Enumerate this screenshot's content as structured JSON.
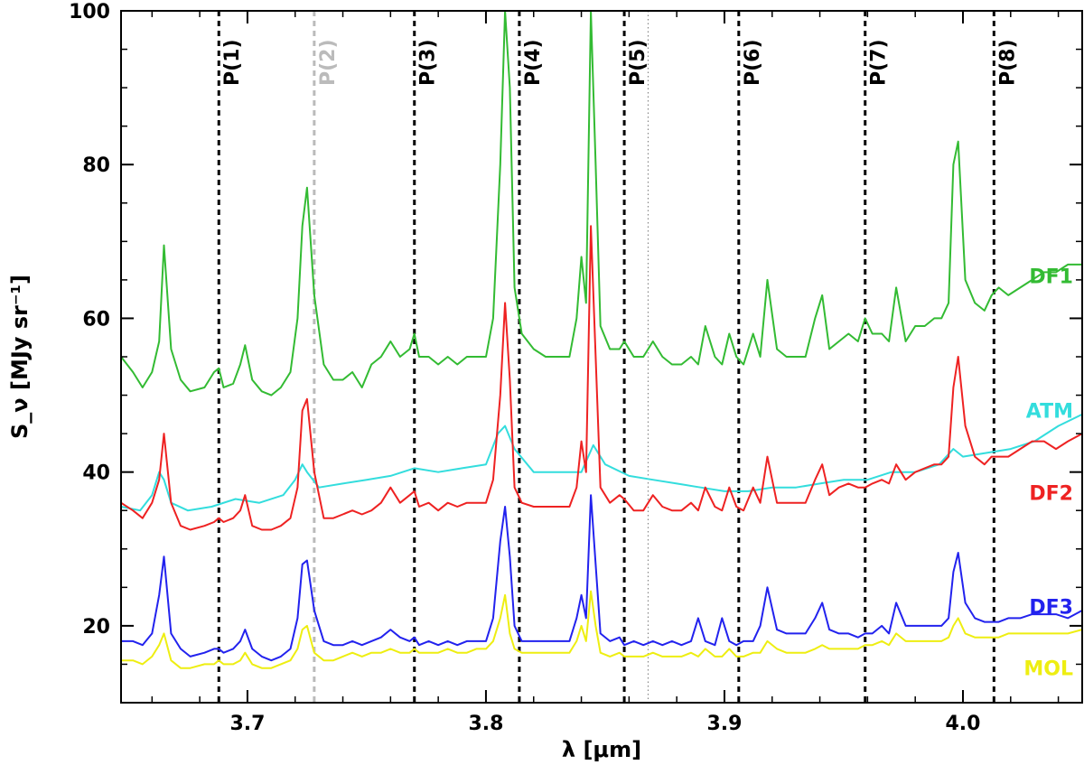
{
  "chart_data": {
    "type": "line",
    "xlabel": "λ [μm]",
    "ylabel": "S_ν [MJy sr⁻¹]",
    "xlim": [
      3.647,
      4.05
    ],
    "ylim": [
      10,
      100
    ],
    "x_ticks": [
      3.7,
      3.8,
      3.9,
      4.0
    ],
    "x_tick_labels": [
      "3.7",
      "3.8",
      "3.9",
      "4.0"
    ],
    "y_ticks": [
      20,
      40,
      60,
      80,
      100
    ],
    "y_tick_labels": [
      "20",
      "40",
      "60",
      "80",
      "100"
    ],
    "grid": false,
    "vlines": [
      {
        "label": "P(1)",
        "x": 3.688,
        "color": "#000000",
        "style": "dashed"
      },
      {
        "label": "P(2)",
        "x": 3.728,
        "color": "#bbbbbb",
        "style": "dashed"
      },
      {
        "label": "P(3)",
        "x": 3.77,
        "color": "#000000",
        "style": "dashed"
      },
      {
        "label": "P(4)",
        "x": 3.814,
        "color": "#000000",
        "style": "dashed"
      },
      {
        "label": "P(5)",
        "x": 3.858,
        "color": "#000000",
        "style": "dashed"
      },
      {
        "label": "",
        "x": 3.868,
        "color": "#888888",
        "style": "dotted"
      },
      {
        "label": "P(6)",
        "x": 3.906,
        "color": "#000000",
        "style": "dashed"
      },
      {
        "label": "P(7)",
        "x": 3.959,
        "color": "#000000",
        "style": "dashed"
      },
      {
        "label": "P(8)",
        "x": 4.013,
        "color": "#000000",
        "style": "dashed"
      }
    ],
    "series": [
      {
        "name": "DF1",
        "color": "#33bb33",
        "label_y": 65.5,
        "x": [
          3.647,
          3.652,
          3.656,
          3.66,
          3.663,
          3.665,
          3.668,
          3.672,
          3.676,
          3.682,
          3.686,
          3.688,
          3.69,
          3.694,
          3.697,
          3.699,
          3.702,
          3.706,
          3.71,
          3.714,
          3.718,
          3.721,
          3.723,
          3.725,
          3.728,
          3.732,
          3.736,
          3.74,
          3.744,
          3.748,
          3.752,
          3.756,
          3.76,
          3.764,
          3.768,
          3.77,
          3.772,
          3.776,
          3.78,
          3.784,
          3.788,
          3.792,
          3.796,
          3.8,
          3.803,
          3.806,
          3.808,
          3.81,
          3.812,
          3.815,
          3.82,
          3.825,
          3.83,
          3.835,
          3.838,
          3.84,
          3.842,
          3.844,
          3.846,
          3.848,
          3.852,
          3.856,
          3.858,
          3.862,
          3.866,
          3.87,
          3.874,
          3.878,
          3.882,
          3.886,
          3.889,
          3.892,
          3.896,
          3.899,
          3.902,
          3.905,
          3.908,
          3.912,
          3.915,
          3.918,
          3.922,
          3.926,
          3.93,
          3.934,
          3.938,
          3.941,
          3.944,
          3.948,
          3.952,
          3.956,
          3.959,
          3.962,
          3.966,
          3.969,
          3.972,
          3.976,
          3.98,
          3.984,
          3.988,
          3.991,
          3.994,
          3.996,
          3.998,
          4.001,
          4.005,
          4.009,
          4.012,
          4.015,
          4.019,
          4.024,
          4.029,
          4.034,
          4.039,
          4.044,
          4.05
        ],
        "y": [
          55,
          53,
          51,
          53,
          57,
          69.5,
          56,
          52,
          50.5,
          51,
          53,
          53.5,
          51,
          51.5,
          54,
          56.5,
          52,
          50.5,
          50,
          51,
          53,
          60,
          72,
          77,
          63,
          54,
          52,
          52,
          53,
          51,
          54,
          55,
          57,
          55,
          56,
          58,
          55,
          55,
          54,
          55,
          54,
          55,
          55,
          55,
          60,
          80,
          100,
          90,
          64,
          58,
          56,
          55,
          55,
          55,
          60,
          68,
          62,
          100,
          80,
          59,
          56,
          56,
          57,
          55,
          55,
          57,
          55,
          54,
          54,
          55,
          54,
          59,
          55,
          54,
          58,
          55,
          54,
          58,
          55,
          65,
          56,
          55,
          55,
          55,
          60,
          63,
          56,
          57,
          58,
          57,
          60,
          58,
          58,
          57,
          64,
          57,
          59,
          59,
          60,
          60,
          62,
          80,
          83,
          65,
          62,
          61,
          63,
          64,
          63,
          64,
          65,
          66,
          66,
          67,
          67
        ]
      },
      {
        "name": "ATM",
        "color": "#33dddd",
        "label_y": 48,
        "x": [
          3.647,
          3.655,
          3.66,
          3.663,
          3.665,
          3.668,
          3.675,
          3.685,
          3.695,
          3.705,
          3.715,
          3.72,
          3.723,
          3.725,
          3.73,
          3.74,
          3.75,
          3.76,
          3.77,
          3.78,
          3.79,
          3.8,
          3.805,
          3.808,
          3.812,
          3.82,
          3.83,
          3.84,
          3.845,
          3.85,
          3.86,
          3.87,
          3.88,
          3.89,
          3.9,
          3.91,
          3.92,
          3.93,
          3.94,
          3.95,
          3.96,
          3.97,
          3.98,
          3.99,
          3.996,
          4.0,
          4.01,
          4.02,
          4.03,
          4.04,
          4.05
        ],
        "y": [
          35.5,
          35,
          37,
          40,
          39,
          36,
          35,
          35.5,
          36.5,
          36,
          37,
          39,
          41,
          40,
          38,
          38.5,
          39,
          39.5,
          40.5,
          40,
          40.5,
          41,
          45,
          46,
          43,
          40,
          40,
          40,
          43.5,
          41,
          39.5,
          39,
          38.5,
          38,
          37.5,
          37.5,
          38,
          38,
          38.5,
          39,
          39,
          40,
          40,
          41,
          43,
          42,
          42.5,
          43,
          44,
          46,
          47.5
        ]
      },
      {
        "name": "DF2",
        "color": "#ee2222",
        "label_y": 37.3,
        "x": [
          3.647,
          3.652,
          3.656,
          3.66,
          3.663,
          3.665,
          3.668,
          3.672,
          3.676,
          3.682,
          3.686,
          3.688,
          3.69,
          3.694,
          3.697,
          3.699,
          3.702,
          3.706,
          3.71,
          3.714,
          3.718,
          3.721,
          3.723,
          3.725,
          3.728,
          3.732,
          3.736,
          3.74,
          3.744,
          3.748,
          3.752,
          3.756,
          3.76,
          3.764,
          3.768,
          3.77,
          3.772,
          3.776,
          3.78,
          3.784,
          3.788,
          3.792,
          3.796,
          3.8,
          3.803,
          3.806,
          3.808,
          3.81,
          3.812,
          3.815,
          3.82,
          3.825,
          3.83,
          3.835,
          3.838,
          3.84,
          3.842,
          3.844,
          3.846,
          3.848,
          3.852,
          3.856,
          3.858,
          3.862,
          3.866,
          3.87,
          3.874,
          3.878,
          3.882,
          3.886,
          3.889,
          3.892,
          3.896,
          3.899,
          3.902,
          3.905,
          3.908,
          3.912,
          3.915,
          3.918,
          3.922,
          3.926,
          3.93,
          3.934,
          3.938,
          3.941,
          3.944,
          3.948,
          3.952,
          3.956,
          3.959,
          3.962,
          3.966,
          3.969,
          3.972,
          3.976,
          3.98,
          3.984,
          3.988,
          3.991,
          3.994,
          3.996,
          3.998,
          4.001,
          4.005,
          4.009,
          4.012,
          4.015,
          4.019,
          4.024,
          4.029,
          4.034,
          4.039,
          4.044,
          4.05
        ],
        "y": [
          36,
          35,
          34,
          36,
          39,
          45,
          36,
          33,
          32.5,
          33,
          33.5,
          34,
          33.5,
          34,
          35,
          37,
          33,
          32.5,
          32.5,
          33,
          34,
          38,
          48,
          49.5,
          40,
          34,
          34,
          34.5,
          35,
          34.5,
          35,
          36,
          38,
          36,
          37,
          37.5,
          35.5,
          36,
          35,
          36,
          35.5,
          36,
          36,
          36,
          39,
          50,
          62,
          52,
          38,
          36,
          35.5,
          35.5,
          35.5,
          35.5,
          38,
          44,
          40,
          72,
          55,
          38,
          36,
          37,
          36.5,
          35,
          35,
          37,
          35.5,
          35,
          35,
          36,
          35,
          38,
          35.5,
          35,
          38,
          35.5,
          35,
          38,
          36,
          42,
          36,
          36,
          36,
          36,
          39,
          41,
          37,
          38,
          38.5,
          38,
          38,
          38.5,
          39,
          38.5,
          41,
          39,
          40,
          40.5,
          41,
          41,
          42,
          51,
          55,
          46,
          42,
          41,
          42,
          42,
          42,
          43,
          44,
          44,
          43,
          44,
          45
        ]
      },
      {
        "name": "DF3",
        "color": "#2222ee",
        "label_y": 22.5,
        "x": [
          3.647,
          3.652,
          3.656,
          3.66,
          3.663,
          3.665,
          3.668,
          3.672,
          3.676,
          3.682,
          3.686,
          3.688,
          3.69,
          3.694,
          3.697,
          3.699,
          3.702,
          3.706,
          3.71,
          3.714,
          3.718,
          3.721,
          3.723,
          3.725,
          3.728,
          3.732,
          3.736,
          3.74,
          3.744,
          3.748,
          3.752,
          3.756,
          3.76,
          3.764,
          3.768,
          3.77,
          3.772,
          3.776,
          3.78,
          3.784,
          3.788,
          3.792,
          3.796,
          3.8,
          3.803,
          3.806,
          3.808,
          3.81,
          3.812,
          3.815,
          3.82,
          3.825,
          3.83,
          3.835,
          3.838,
          3.84,
          3.842,
          3.844,
          3.846,
          3.848,
          3.852,
          3.856,
          3.858,
          3.862,
          3.866,
          3.87,
          3.874,
          3.878,
          3.882,
          3.886,
          3.889,
          3.892,
          3.896,
          3.899,
          3.902,
          3.905,
          3.908,
          3.912,
          3.915,
          3.918,
          3.922,
          3.926,
          3.93,
          3.934,
          3.938,
          3.941,
          3.944,
          3.948,
          3.952,
          3.956,
          3.959,
          3.962,
          3.966,
          3.969,
          3.972,
          3.976,
          3.98,
          3.984,
          3.988,
          3.991,
          3.994,
          3.996,
          3.998,
          4.001,
          4.005,
          4.009,
          4.012,
          4.015,
          4.019,
          4.024,
          4.029,
          4.034,
          4.039,
          4.044,
          4.05
        ],
        "y": [
          18,
          18,
          17.5,
          19,
          24,
          29,
          19,
          17,
          16,
          16.5,
          17,
          17,
          16.5,
          17,
          18,
          19.5,
          17,
          16,
          15.5,
          16,
          17,
          21,
          28,
          28.5,
          22,
          18,
          17.5,
          17.5,
          18,
          17.5,
          18,
          18.5,
          19.5,
          18.5,
          18,
          18.5,
          17.5,
          18,
          17.5,
          18,
          17.5,
          18,
          18,
          18,
          21,
          31,
          35.5,
          29,
          20,
          18,
          18,
          18,
          18,
          18,
          21,
          24,
          21,
          37,
          28,
          19,
          18,
          18.5,
          17.5,
          18,
          17.5,
          18,
          17.5,
          18,
          17.5,
          18,
          21,
          18,
          17.5,
          21,
          18,
          17.5,
          18,
          18,
          20,
          25,
          19.5,
          19,
          19,
          19,
          21,
          23,
          19.5,
          19,
          19,
          18.5,
          19,
          19,
          20,
          19,
          23,
          20,
          20,
          20,
          20,
          20,
          21,
          27,
          29.5,
          23,
          21,
          20.5,
          20.5,
          20.5,
          21,
          21,
          21.5,
          21.5,
          21.5,
          21,
          22
        ]
      },
      {
        "name": "MOL",
        "color": "#eeee11",
        "label_y": 14.5,
        "x": [
          3.647,
          3.652,
          3.656,
          3.66,
          3.663,
          3.665,
          3.668,
          3.672,
          3.676,
          3.682,
          3.686,
          3.688,
          3.69,
          3.694,
          3.697,
          3.699,
          3.702,
          3.706,
          3.71,
          3.714,
          3.718,
          3.721,
          3.723,
          3.725,
          3.728,
          3.732,
          3.736,
          3.74,
          3.744,
          3.748,
          3.752,
          3.756,
          3.76,
          3.764,
          3.768,
          3.77,
          3.772,
          3.776,
          3.78,
          3.784,
          3.788,
          3.792,
          3.796,
          3.8,
          3.803,
          3.806,
          3.808,
          3.81,
          3.812,
          3.815,
          3.82,
          3.825,
          3.83,
          3.835,
          3.838,
          3.84,
          3.842,
          3.844,
          3.846,
          3.848,
          3.852,
          3.856,
          3.858,
          3.862,
          3.866,
          3.87,
          3.874,
          3.878,
          3.882,
          3.886,
          3.889,
          3.892,
          3.896,
          3.899,
          3.902,
          3.905,
          3.908,
          3.912,
          3.915,
          3.918,
          3.922,
          3.926,
          3.93,
          3.934,
          3.938,
          3.941,
          3.944,
          3.948,
          3.952,
          3.956,
          3.959,
          3.962,
          3.966,
          3.969,
          3.972,
          3.976,
          3.98,
          3.984,
          3.988,
          3.991,
          3.994,
          3.996,
          3.998,
          4.001,
          4.005,
          4.009,
          4.012,
          4.015,
          4.019,
          4.024,
          4.029,
          4.034,
          4.039,
          4.044,
          4.05
        ],
        "y": [
          15.5,
          15.5,
          15,
          16,
          17.5,
          19,
          15.5,
          14.5,
          14.5,
          15,
          15,
          15.5,
          15,
          15,
          15.5,
          16.5,
          15,
          14.5,
          14.5,
          15,
          15.5,
          17,
          19.5,
          20,
          16.5,
          15.5,
          15.5,
          16,
          16.5,
          16,
          16.5,
          16.5,
          17,
          16.5,
          16.5,
          17,
          16.5,
          16.5,
          16.5,
          17,
          16.5,
          16.5,
          17,
          17,
          18,
          21,
          24,
          19,
          17,
          16.5,
          16.5,
          16.5,
          16.5,
          16.5,
          18,
          20,
          18,
          24.5,
          20,
          16.5,
          16,
          16.5,
          16,
          16,
          16,
          16.5,
          16,
          16,
          16,
          16.5,
          16,
          17,
          16,
          16,
          17,
          16,
          16,
          16.5,
          16.5,
          18,
          17,
          16.5,
          16.5,
          16.5,
          17,
          17.5,
          17,
          17,
          17,
          17,
          17.5,
          17.5,
          18,
          17.5,
          19,
          18,
          18,
          18,
          18,
          18,
          18.5,
          20,
          21,
          19,
          18.5,
          18.5,
          18.5,
          18.5,
          19,
          19,
          19,
          19,
          19,
          19,
          19.5
        ]
      }
    ]
  }
}
